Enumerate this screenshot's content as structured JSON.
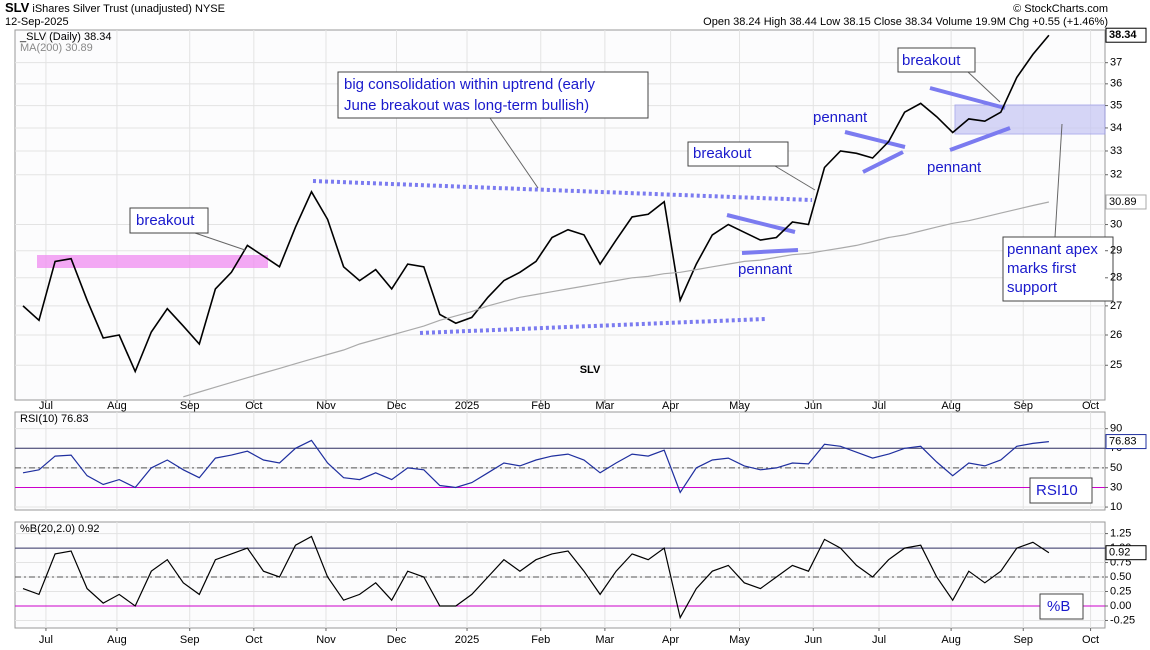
{
  "header": {
    "symbol": "SLV",
    "name": "iShares Silver Trust (unadjusted)",
    "exchange": "NYSE",
    "date": "12-Sep-2025",
    "quote": "Open 38.24 High 38.44 Low 38.15 Close 38.34 Volume 19.9M Chg +0.55 (+1.46%)",
    "source": "© StockCharts.com"
  },
  "chart_data": [
    {
      "type": "line",
      "log_scale": true,
      "grid": true,
      "watermark": "SLV",
      "xlim": [
        -0.5,
        67.5
      ],
      "xticks": [
        {
          "value": 1.43,
          "label": "Jul"
        },
        {
          "value": 5.86,
          "label": "Aug"
        },
        {
          "value": 10.4,
          "label": "Sep"
        },
        {
          "value": 14.4,
          "label": "Oct"
        },
        {
          "value": 18.9,
          "label": "Nov"
        },
        {
          "value": 23.3,
          "label": "Dec"
        },
        {
          "value": 27.7,
          "label": "2025"
        },
        {
          "value": 32.3,
          "label": "Feb"
        },
        {
          "value": 36.3,
          "label": "Mar"
        },
        {
          "value": 40.4,
          "label": "Apr"
        },
        {
          "value": 44.7,
          "label": "May"
        },
        {
          "value": 49.3,
          "label": "Jun"
        },
        {
          "value": 53.4,
          "label": "Jul"
        },
        {
          "value": 57.9,
          "label": "Aug"
        },
        {
          "value": 62.4,
          "label": "Sep"
        },
        {
          "value": 66.6,
          "label": "Oct"
        }
      ],
      "ylim": [
        23.9,
        38.6
      ],
      "yticks": [
        25,
        26,
        27,
        28,
        29,
        30,
        32,
        33,
        34,
        35,
        36,
        37
      ],
      "series": [
        {
          "name": "_SLV (Daily)",
          "color": "#000000",
          "values": [
            27.0,
            26.5,
            28.6,
            28.7,
            27.2,
            25.9,
            26.0,
            24.8,
            26.1,
            26.9,
            26.3,
            25.7,
            27.6,
            28.2,
            29.2,
            28.8,
            28.4,
            29.9,
            31.3,
            30.2,
            28.4,
            27.9,
            28.3,
            27.6,
            28.5,
            28.4,
            26.7,
            26.4,
            26.6,
            27.3,
            27.9,
            28.2,
            28.6,
            29.5,
            29.8,
            29.6,
            28.5,
            29.4,
            30.3,
            30.4,
            30.9,
            27.2,
            28.5,
            29.6,
            30.0,
            29.7,
            29.4,
            29.5,
            30.1,
            30.0,
            32.3,
            33.0,
            32.9,
            32.7,
            33.4,
            34.7,
            35.1,
            34.5,
            33.8,
            34.4,
            34.3,
            34.7,
            36.3,
            37.4,
            38.34
          ]
        },
        {
          "name": "MA(200)",
          "color": "#aaaaaa",
          "values": [
            null,
            null,
            null,
            null,
            null,
            null,
            null,
            null,
            null,
            null,
            24.0,
            24.15,
            24.3,
            24.45,
            24.6,
            24.75,
            24.9,
            25.05,
            25.2,
            25.35,
            25.5,
            25.7,
            25.85,
            26.0,
            26.15,
            26.3,
            26.5,
            26.65,
            26.8,
            27.0,
            27.15,
            27.3,
            27.4,
            27.5,
            27.6,
            27.7,
            27.8,
            27.9,
            28.0,
            28.05,
            28.15,
            28.2,
            28.3,
            28.4,
            28.5,
            28.6,
            28.65,
            28.75,
            28.85,
            28.9,
            29.0,
            29.1,
            29.2,
            29.35,
            29.5,
            29.6,
            29.75,
            29.9,
            30.05,
            30.15,
            30.3,
            30.45,
            30.6,
            30.75,
            30.89
          ]
        }
      ],
      "annotations": {
        "breakout_1": "breakout",
        "consolidation": [
          "big consolidation within uptrend (early",
          "June breakout was long-term bullish)"
        ],
        "breakout_2": "breakout",
        "breakout_3": "breakout",
        "pennant_1": "pennant",
        "pennant_2": "pennant",
        "pennant_3": "pennant",
        "apex": [
          "pennant apex",
          "marks first",
          "support"
        ]
      }
    },
    {
      "type": "line",
      "grid": true,
      "panel_label": "RSI10",
      "xlim": [
        -0.5,
        67.5
      ],
      "ylim": [
        7,
        107
      ],
      "yticks": [
        10,
        30,
        50,
        70,
        90
      ],
      "ref_lines": [
        {
          "value": 70,
          "color": "#333366"
        },
        {
          "value": 50,
          "color": "#555555",
          "dash": true
        },
        {
          "value": 30,
          "color": "#cc00cc"
        }
      ],
      "series": [
        {
          "name": "RSI(10)",
          "color": "#1f2f9f",
          "values": [
            45,
            48,
            62,
            63,
            42,
            33,
            38,
            30,
            50,
            58,
            48,
            40,
            60,
            63,
            67,
            58,
            55,
            70,
            78,
            55,
            40,
            38,
            45,
            38,
            50,
            48,
            32,
            30,
            35,
            45,
            55,
            52,
            58,
            62,
            64,
            58,
            45,
            55,
            64,
            62,
            68,
            25,
            50,
            58,
            60,
            52,
            48,
            50,
            55,
            54,
            74,
            72,
            66,
            60,
            64,
            70,
            72,
            56,
            42,
            55,
            52,
            58,
            72,
            75,
            76.83
          ]
        }
      ]
    },
    {
      "type": "line",
      "grid": true,
      "panel_label": "%B",
      "xlim": [
        -0.5,
        67.5
      ],
      "xticks": [
        {
          "value": 1.43,
          "label": "Jul"
        },
        {
          "value": 5.86,
          "label": "Aug"
        },
        {
          "value": 10.4,
          "label": "Sep"
        },
        {
          "value": 14.4,
          "label": "Oct"
        },
        {
          "value": 18.9,
          "label": "Nov"
        },
        {
          "value": 23.3,
          "label": "Dec"
        },
        {
          "value": 27.7,
          "label": "2025"
        },
        {
          "value": 32.3,
          "label": "Feb"
        },
        {
          "value": 36.3,
          "label": "Mar"
        },
        {
          "value": 40.4,
          "label": "Apr"
        },
        {
          "value": 44.7,
          "label": "May"
        },
        {
          "value": 49.3,
          "label": "Jun"
        },
        {
          "value": 53.4,
          "label": "Jul"
        },
        {
          "value": 57.9,
          "label": "Aug"
        },
        {
          "value": 62.4,
          "label": "Sep"
        },
        {
          "value": 66.6,
          "label": "Oct"
        }
      ],
      "ylim": [
        -0.38,
        1.45
      ],
      "yticks": [
        1.25,
        {
          "value": 1,
          "label": "1.00"
        },
        0.75,
        {
          "value": 0.5,
          "label": "0.50"
        },
        0.25,
        {
          "value": 0,
          "label": "0.00"
        },
        -0.25
      ],
      "ref_lines": [
        {
          "value": 1,
          "color": "#333366"
        },
        {
          "value": 0.5,
          "color": "#555555",
          "dash": true
        },
        {
          "value": 0,
          "color": "#cc00cc"
        }
      ],
      "series": [
        {
          "name": "%B(20,2.0)",
          "color": "#000000",
          "values": [
            0.3,
            0.2,
            0.9,
            0.95,
            0.3,
            0.05,
            0.2,
            0.0,
            0.6,
            0.8,
            0.4,
            0.2,
            0.8,
            0.9,
            1.0,
            0.6,
            0.5,
            1.05,
            1.2,
            0.5,
            0.1,
            0.2,
            0.4,
            0.1,
            0.6,
            0.5,
            0.0,
            0.0,
            0.2,
            0.5,
            0.8,
            0.6,
            0.8,
            0.9,
            0.95,
            0.6,
            0.2,
            0.6,
            0.9,
            0.8,
            1.0,
            -0.2,
            0.3,
            0.6,
            0.7,
            0.4,
            0.3,
            0.5,
            0.7,
            0.6,
            1.15,
            1.0,
            0.7,
            0.5,
            0.8,
            1.0,
            1.05,
            0.5,
            0.1,
            0.6,
            0.4,
            0.6,
            1.0,
            1.1,
            0.92
          ]
        }
      ]
    }
  ]
}
